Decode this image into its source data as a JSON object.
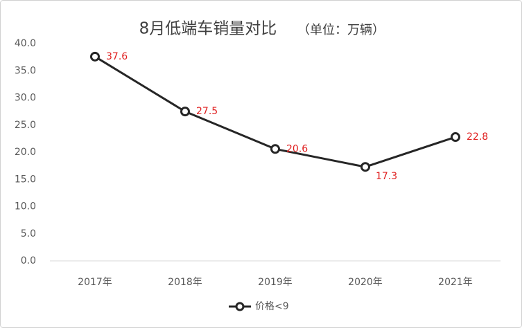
{
  "chart_data": {
    "type": "line",
    "title": "8月低端车销量对比",
    "subtitle": "（单位：万辆）",
    "categories": [
      "2017年",
      "2018年",
      "2019年",
      "2020年",
      "2021年"
    ],
    "series": [
      {
        "name": "价格<9",
        "color": "#262626",
        "label_color": "#e02020",
        "values": [
          37.6,
          27.5,
          20.6,
          17.3,
          22.8
        ]
      }
    ],
    "ylim": [
      0,
      40
    ],
    "yticks": [
      {
        "value": 0,
        "label": "0.0"
      },
      {
        "value": 5,
        "label": "5.0"
      },
      {
        "value": 10,
        "label": "10.0"
      },
      {
        "value": 15,
        "label": "15.0"
      },
      {
        "value": 20,
        "label": "20.0"
      },
      {
        "value": 25,
        "label": "25.0"
      },
      {
        "value": 30,
        "label": "30.0"
      },
      {
        "value": 35,
        "label": "35.0"
      },
      {
        "value": 40,
        "label": "40.0"
      }
    ],
    "grid": false,
    "legend": "bottom"
  }
}
